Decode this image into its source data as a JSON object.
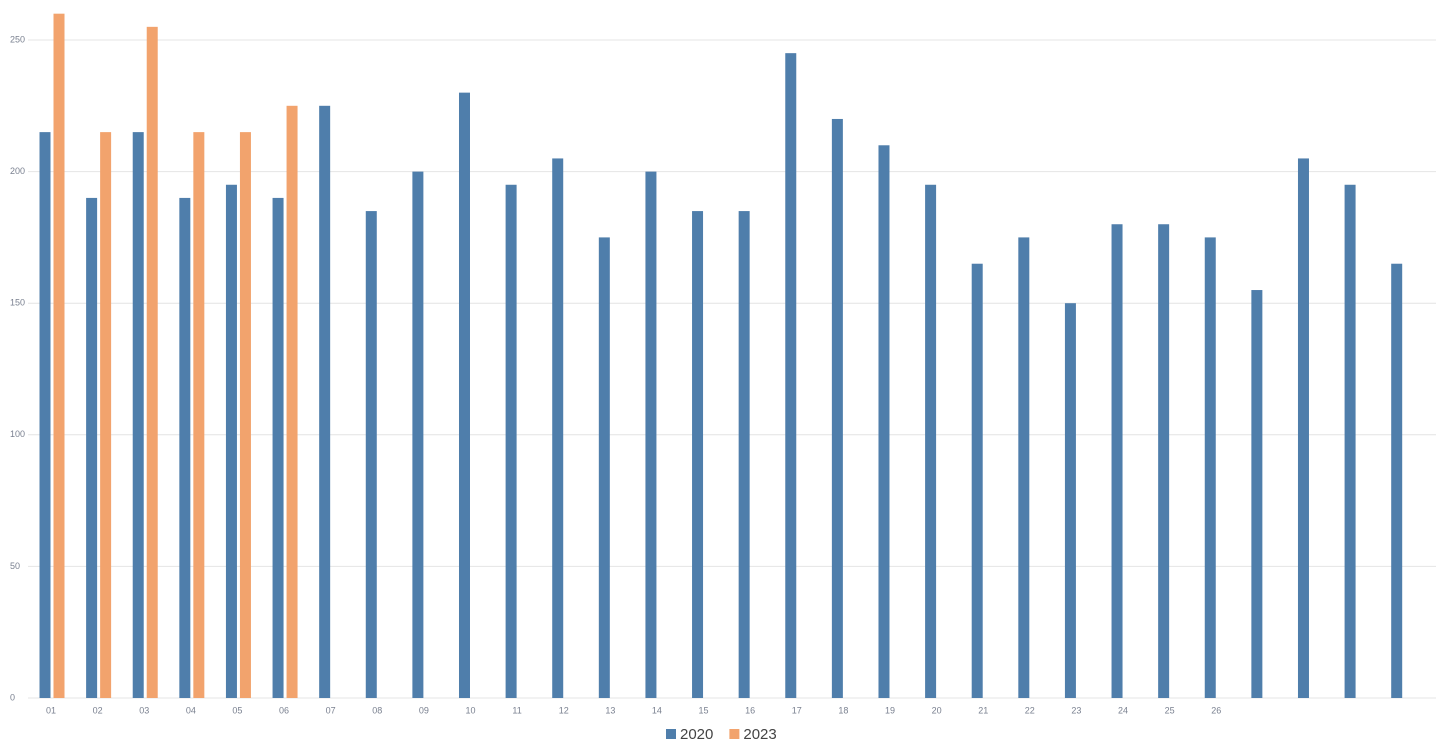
{
  "chart_data": {
    "type": "bar",
    "categories": [
      "01",
      "02",
      "03",
      "04",
      "05",
      "06",
      "07",
      "08",
      "09",
      "10",
      "11",
      "12",
      "13",
      "14",
      "15",
      "16",
      "17",
      "18",
      "19",
      "20",
      "21",
      "22",
      "23",
      "24",
      "25",
      "26",
      null,
      null,
      null,
      null
    ],
    "series": [
      {
        "name": "2020",
        "color": "#4f7eab",
        "values": [
          215,
          190,
          215,
          190,
          195,
          190,
          225,
          185,
          200,
          230,
          195,
          205,
          175,
          200,
          185,
          185,
          245,
          220,
          210,
          195,
          165,
          175,
          150,
          180,
          180,
          175,
          155,
          205,
          195,
          165
        ]
      },
      {
        "name": "2023",
        "color": "#f2a36d",
        "values": [
          260,
          215,
          255,
          215,
          215,
          225,
          null,
          null,
          null,
          null,
          null,
          null,
          null,
          null,
          null,
          null,
          null,
          null,
          null,
          null,
          null,
          null,
          null,
          null,
          null,
          null,
          null,
          null,
          null,
          null
        ]
      }
    ],
    "ylim": [
      0,
      260
    ],
    "yticks": [
      0,
      50,
      100,
      150,
      200,
      250
    ],
    "grid": true,
    "legend": "bottom"
  }
}
